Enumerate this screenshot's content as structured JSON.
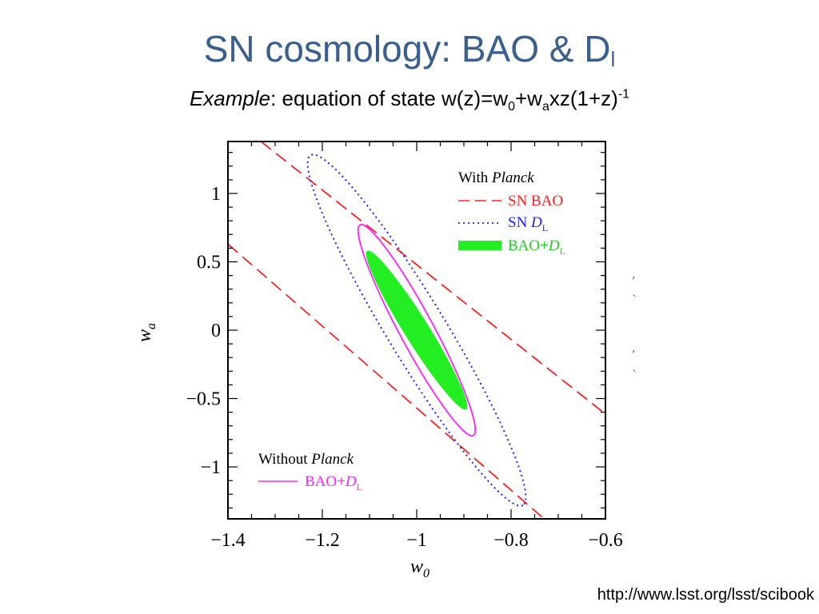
{
  "slide": {
    "title_main": "SN cosmology: BAO & D",
    "title_sub": "l",
    "subtitle_italic": "Example",
    "subtitle_rest": ": equation of state w(z)=w",
    "subtitle_sub0": "0",
    "subtitle_mid": "+w",
    "subtitle_suba": "a",
    "subtitle_end": "xz(1+z)",
    "subtitle_sup": "-1",
    "source": "http://www.lsst.org/lsst/scibook"
  },
  "chart_data": {
    "type": "scatter",
    "xlabel": "w",
    "xlabel_sub": "0",
    "ylabel": "w",
    "ylabel_sub": "a",
    "xlim": [
      -1.4,
      -0.6
    ],
    "ylim": [
      -1.38,
      1.38
    ],
    "xticks": [
      -1.4,
      -1.2,
      -1.0,
      -0.8,
      -0.6
    ],
    "xtick_labels": [
      "−1.4",
      "−1.2",
      "−1",
      "−0.8",
      "−0.6"
    ],
    "yticks": [
      1,
      0.5,
      0,
      -0.5,
      -1
    ],
    "ytick_labels": [
      "1",
      "0.5",
      "0",
      "−0.5",
      "−1"
    ],
    "grid": false,
    "legend_with": {
      "heading": "With ",
      "heading_italic": "Planck",
      "items": [
        {
          "label": "SN BAO",
          "color": "#ff2020",
          "style": "dashed"
        },
        {
          "label": "SN ",
          "label_italic": "D",
          "label_sub": "L",
          "color": "#2020ff",
          "style": "dotted"
        },
        {
          "label": "BAO+",
          "label_italic": "D",
          "label_sub": "L",
          "color": "#22ee22",
          "style": "filled"
        }
      ],
      "position": "top-right"
    },
    "legend_without": {
      "heading": "Without ",
      "heading_italic": "Planck",
      "items": [
        {
          "label": "BAO+",
          "label_italic": "D",
          "label_sub": "L",
          "color": "#ff22ff",
          "style": "solid"
        }
      ],
      "position": "bottom-left"
    },
    "series": [
      {
        "name": "SN BAO",
        "color": "#ff2020",
        "style": "dashed-band",
        "lines": [
          [
            [
              -1.33,
              1.38
            ],
            [
              -0.605,
              -0.6
            ]
          ],
          [
            [
              -1.4,
              0.63
            ],
            [
              -0.73,
              -1.38
            ]
          ]
        ]
      },
      {
        "name": "SN D_L",
        "color": "#2020ff",
        "style": "dotted-ellipse",
        "ellipse": {
          "endpoints": [
            [
              -1.225,
              1.28
            ],
            [
              -0.775,
              -1.28
            ]
          ],
          "semi_minor_x": 0.062
        }
      },
      {
        "name": "Without Planck BAO+D_L",
        "color": "#ff22ff",
        "style": "solid-ellipse",
        "ellipse": {
          "endpoints": [
            [
              -1.12,
              0.77
            ],
            [
              -0.88,
              -0.77
            ]
          ],
          "semi_minor_x": 0.036
        }
      },
      {
        "name": "With Planck BAO+D_L",
        "color": "#22ee22",
        "style": "filled-ellipse",
        "ellipse": {
          "endpoints": [
            [
              -1.105,
              0.58
            ],
            [
              -0.895,
              -0.58
            ]
          ],
          "semi_minor_x": 0.026
        }
      }
    ]
  }
}
